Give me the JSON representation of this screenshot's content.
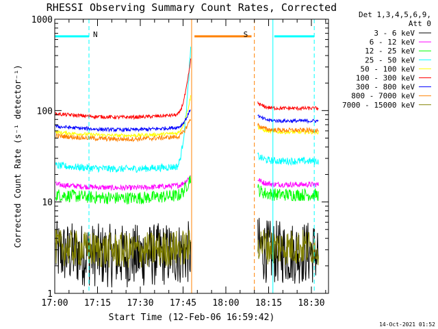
{
  "chart_data": {
    "type": "line",
    "title": "RHESSI Observing Summary Count Rates, Corrected",
    "ylabel": "Corrected Count Rate (s⁻¹ detector⁻¹)",
    "xlabel": "Start Time (12-Feb-06 16:59:42)",
    "y_scale": "log",
    "ylim": [
      1,
      1000
    ],
    "y_ticks": [
      "1",
      "10",
      "100",
      "1000"
    ],
    "x_ticks": [
      "17:00",
      "17:15",
      "17:30",
      "17:45",
      "18:00",
      "18:15",
      "18:30"
    ],
    "xlim_minutes": [
      0,
      96
    ],
    "legend_header": [
      "Det 1,3,4,5,6,9,",
      "Att 0"
    ],
    "legend_position": "right",
    "gaps_minutes": [
      [
        48,
        71
      ]
    ],
    "series": [
      {
        "name": "3 - 6 keV",
        "color": "#000000",
        "level": 2.8,
        "noise": 0.35,
        "end_slope": 0,
        "after_factor": 1.0
      },
      {
        "name": "6 - 12 keV",
        "color": "#ff00ff",
        "level": 15.5,
        "noise": 0.03,
        "end_slope": 0.1,
        "after_factor": 1.0
      },
      {
        "name": "12 - 25 keV",
        "color": "#00ff00",
        "level": 12,
        "noise": 0.07,
        "end_slope": 0.2,
        "after_factor": 1.0
      },
      {
        "name": "25 - 50 keV",
        "color": "#00ffff",
        "level": 25,
        "noise": 0.04,
        "end_slope": 1.3,
        "after_factor": 1.12
      },
      {
        "name": "50 - 100 keV",
        "color": "#ffff00",
        "level": 58,
        "noise": 0.02,
        "end_slope": 0.4,
        "after_factor": 1.0
      },
      {
        "name": "100 - 300 keV",
        "color": "#ff0000",
        "level": 92,
        "noise": 0.02,
        "end_slope": 0.6,
        "after_factor": 1.15
      },
      {
        "name": "300 - 800 keV",
        "color": "#0000ff",
        "level": 67,
        "noise": 0.02,
        "end_slope": 0.2,
        "after_factor": 1.15
      },
      {
        "name": "800 - 7000 keV",
        "color": "#ff8000",
        "level": 53,
        "noise": 0.025,
        "end_slope": 0.2,
        "after_factor": 1.15
      },
      {
        "name": "7000 - 15000 keV",
        "color": "#808000",
        "level": 3.2,
        "noise": 0.2,
        "end_slope": 0,
        "after_factor": 1.0
      }
    ],
    "annotations": [
      {
        "label": "N",
        "type": "night",
        "color": "#00ffff",
        "bar_minutes": [
          0,
          12
        ],
        "dashed_end_minute": 12
      },
      {
        "label": "S",
        "type": "saa",
        "color": "#ff8000",
        "bar_minutes": [
          49,
          69
        ],
        "dashed_end_minute": 70
      },
      {
        "label": "",
        "type": "night",
        "color": "#00ffff",
        "bar_minutes": [
          77,
          91
        ],
        "dashed_end_minute": 91
      }
    ],
    "solid_markers_minutes": [
      {
        "minute": 0,
        "color": "#00ffff"
      },
      {
        "minute": 48,
        "color": "#ff8000"
      },
      {
        "minute": 76.5,
        "color": "#00ffff"
      }
    ],
    "flag_level": 650,
    "grid": false
  },
  "timestamp": "14-Oct-2021 01:52"
}
